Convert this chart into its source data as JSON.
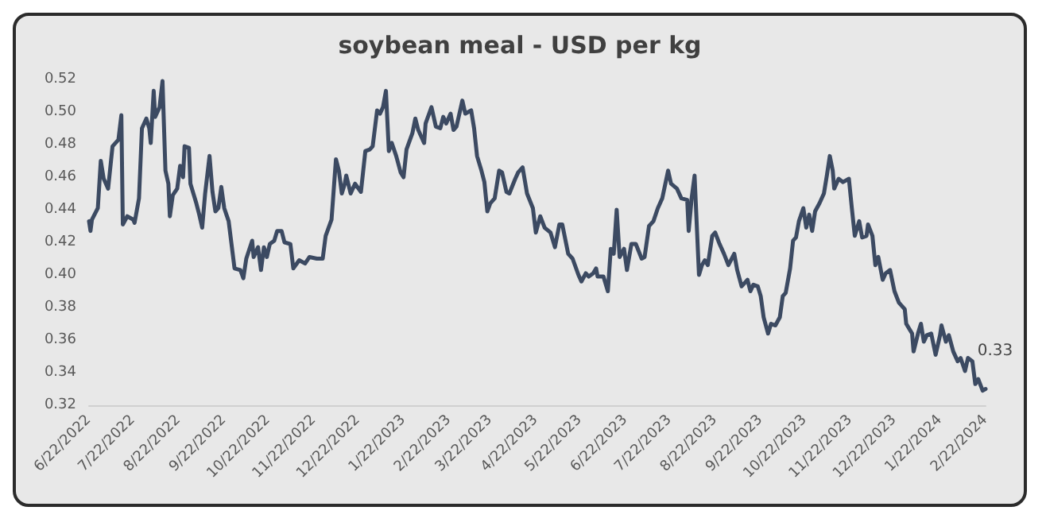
{
  "chart_data": {
    "type": "line",
    "title": "soybean meal - USD per kg",
    "x": [
      "2022-06-22",
      "2022-06-23",
      "2022-06-24",
      "2022-06-28",
      "2022-06-30",
      "2022-07-02",
      "2022-07-05",
      "2022-07-08",
      "2022-07-12",
      "2022-07-14",
      "2022-07-15",
      "2022-07-18",
      "2022-07-22",
      "2022-07-23",
      "2022-07-26",
      "2022-07-28",
      "2022-07-31",
      "2022-08-02",
      "2022-08-03",
      "2022-08-05",
      "2022-08-06",
      "2022-08-09",
      "2022-08-11",
      "2022-08-13",
      "2022-08-15",
      "2022-08-16",
      "2022-08-18",
      "2022-08-21",
      "2022-08-23",
      "2022-08-25",
      "2022-08-26",
      "2022-08-29",
      "2022-08-30",
      "2022-09-03",
      "2022-09-05",
      "2022-09-07",
      "2022-09-09",
      "2022-09-12",
      "2022-09-14",
      "2022-09-16",
      "2022-09-18",
      "2022-09-20",
      "2022-09-22",
      "2022-09-25",
      "2022-09-29",
      "2022-10-03",
      "2022-10-05",
      "2022-10-07",
      "2022-10-11",
      "2022-10-12",
      "2022-10-15",
      "2022-10-17",
      "2022-10-19",
      "2022-10-21",
      "2022-10-23",
      "2022-10-26",
      "2022-10-28",
      "2022-10-31",
      "2022-11-02",
      "2022-11-06",
      "2022-11-08",
      "2022-11-12",
      "2022-11-16",
      "2022-11-19",
      "2022-11-24",
      "2022-11-28",
      "2022-11-30",
      "2022-12-04",
      "2022-12-07",
      "2022-12-09",
      "2022-12-11",
      "2022-12-13",
      "2022-12-14",
      "2022-12-17",
      "2022-12-20",
      "2022-12-24",
      "2022-12-27",
      "2022-12-30",
      "2023-01-01",
      "2023-01-04",
      "2023-01-06",
      "2023-01-08",
      "2023-01-10",
      "2023-01-12",
      "2023-01-14",
      "2023-01-17",
      "2023-01-20",
      "2023-01-22",
      "2023-01-24",
      "2023-01-28",
      "2023-01-30",
      "2023-02-01",
      "2023-02-05",
      "2023-02-06",
      "2023-02-10",
      "2023-02-13",
      "2023-02-16",
      "2023-02-18",
      "2023-02-20",
      "2023-02-23",
      "2023-02-25",
      "2023-02-27",
      "2023-03-03",
      "2023-03-05",
      "2023-03-09",
      "2023-03-11",
      "2023-03-13",
      "2023-03-16",
      "2023-03-18",
      "2023-03-20",
      "2023-03-22",
      "2023-03-25",
      "2023-03-28",
      "2023-03-30",
      "2023-04-02",
      "2023-04-04",
      "2023-04-08",
      "2023-04-10",
      "2023-04-13",
      "2023-04-16",
      "2023-04-20",
      "2023-04-22",
      "2023-04-25",
      "2023-04-28",
      "2023-05-02",
      "2023-05-05",
      "2023-05-08",
      "2023-05-10",
      "2023-05-14",
      "2023-05-17",
      "2023-05-21",
      "2023-05-23",
      "2023-05-26",
      "2023-05-28",
      "2023-05-31",
      "2023-06-02",
      "2023-06-03",
      "2023-06-07",
      "2023-06-10",
      "2023-06-12",
      "2023-06-14",
      "2023-06-16",
      "2023-06-18",
      "2023-06-21",
      "2023-06-23",
      "2023-06-26",
      "2023-06-29",
      "2023-07-03",
      "2023-07-05",
      "2023-07-08",
      "2023-07-11",
      "2023-07-14",
      "2023-07-17",
      "2023-07-21",
      "2023-07-23",
      "2023-07-27",
      "2023-07-30",
      "2023-08-03",
      "2023-08-04",
      "2023-08-06",
      "2023-08-08",
      "2023-08-11",
      "2023-08-13",
      "2023-08-15",
      "2023-08-17",
      "2023-08-20",
      "2023-08-22",
      "2023-08-25",
      "2023-08-28",
      "2023-08-31",
      "2023-09-04",
      "2023-09-06",
      "2023-09-09",
      "2023-09-13",
      "2023-09-15",
      "2023-09-17",
      "2023-09-20",
      "2023-09-22",
      "2023-09-24",
      "2023-09-27",
      "2023-09-29",
      "2023-10-02",
      "2023-10-05",
      "2023-10-07",
      "2023-10-09",
      "2023-10-12",
      "2023-10-14",
      "2023-10-16",
      "2023-10-18",
      "2023-10-21",
      "2023-10-23",
      "2023-10-25",
      "2023-10-27",
      "2023-10-29",
      "2023-11-01",
      "2023-11-04",
      "2023-11-06",
      "2023-11-08",
      "2023-11-10",
      "2023-11-11",
      "2023-11-14",
      "2023-11-17",
      "2023-11-21",
      "2023-11-23",
      "2023-11-25",
      "2023-11-28",
      "2023-11-30",
      "2023-12-03",
      "2023-12-04",
      "2023-12-07",
      "2023-12-09",
      "2023-12-11",
      "2023-12-14",
      "2023-12-16",
      "2023-12-19",
      "2023-12-22",
      "2023-12-25",
      "2023-12-29",
      "2023-12-30",
      "2024-01-03",
      "2024-01-04",
      "2024-01-07",
      "2024-01-09",
      "2024-01-11",
      "2024-01-13",
      "2024-01-16",
      "2024-01-19",
      "2024-01-22",
      "2024-01-23",
      "2024-01-26",
      "2024-01-28",
      "2024-01-31",
      "2024-02-03",
      "2024-02-05",
      "2024-02-08",
      "2024-02-10",
      "2024-02-13",
      "2024-02-15",
      "2024-02-17",
      "2024-02-20",
      "2024-02-22"
    ],
    "series": [
      {
        "color": "#3c4a62",
        "values": [
          0.433,
          0.427,
          0.434,
          0.441,
          0.47,
          0.459,
          0.453,
          0.479,
          0.483,
          0.498,
          0.431,
          0.436,
          0.434,
          0.432,
          0.447,
          0.49,
          0.496,
          0.49,
          0.481,
          0.513,
          0.497,
          0.503,
          0.519,
          0.464,
          0.456,
          0.436,
          0.449,
          0.453,
          0.467,
          0.46,
          0.479,
          0.478,
          0.456,
          0.444,
          0.437,
          0.429,
          0.45,
          0.473,
          0.451,
          0.439,
          0.441,
          0.454,
          0.441,
          0.433,
          0.404,
          0.403,
          0.398,
          0.41,
          0.421,
          0.411,
          0.417,
          0.403,
          0.417,
          0.411,
          0.419,
          0.421,
          0.427,
          0.427,
          0.42,
          0.419,
          0.404,
          0.409,
          0.407,
          0.411,
          0.41,
          0.41,
          0.424,
          0.434,
          0.471,
          0.464,
          0.45,
          0.456,
          0.461,
          0.45,
          0.456,
          0.451,
          0.476,
          0.477,
          0.479,
          0.501,
          0.499,
          0.503,
          0.513,
          0.476,
          0.481,
          0.473,
          0.463,
          0.46,
          0.477,
          0.487,
          0.496,
          0.489,
          0.481,
          0.493,
          0.503,
          0.491,
          0.49,
          0.497,
          0.493,
          0.499,
          0.489,
          0.491,
          0.507,
          0.499,
          0.501,
          0.49,
          0.473,
          0.464,
          0.457,
          0.439,
          0.444,
          0.447,
          0.464,
          0.463,
          0.451,
          0.45,
          0.459,
          0.463,
          0.466,
          0.45,
          0.441,
          0.426,
          0.436,
          0.429,
          0.426,
          0.417,
          0.431,
          0.431,
          0.413,
          0.41,
          0.4,
          0.396,
          0.401,
          0.399,
          0.401,
          0.404,
          0.399,
          0.399,
          0.39,
          0.416,
          0.413,
          0.44,
          0.411,
          0.416,
          0.403,
          0.419,
          0.419,
          0.41,
          0.411,
          0.43,
          0.433,
          0.441,
          0.447,
          0.464,
          0.456,
          0.453,
          0.447,
          0.446,
          0.427,
          0.447,
          0.461,
          0.4,
          0.406,
          0.409,
          0.406,
          0.424,
          0.426,
          0.419,
          0.413,
          0.406,
          0.413,
          0.403,
          0.393,
          0.397,
          0.39,
          0.394,
          0.393,
          0.387,
          0.374,
          0.364,
          0.37,
          0.369,
          0.374,
          0.387,
          0.389,
          0.404,
          0.421,
          0.423,
          0.433,
          0.441,
          0.429,
          0.437,
          0.427,
          0.439,
          0.444,
          0.45,
          0.461,
          0.473,
          0.464,
          0.453,
          0.459,
          0.457,
          0.459,
          0.441,
          0.424,
          0.433,
          0.423,
          0.424,
          0.431,
          0.424,
          0.406,
          0.411,
          0.397,
          0.401,
          0.403,
          0.39,
          0.383,
          0.379,
          0.37,
          0.364,
          0.353,
          0.364,
          0.37,
          0.359,
          0.363,
          0.364,
          0.351,
          0.363,
          0.369,
          0.359,
          0.363,
          0.353,
          0.347,
          0.349,
          0.341,
          0.349,
          0.347,
          0.333,
          0.336,
          0.329,
          0.33
        ]
      }
    ],
    "annotations": [
      {
        "text": "0.33",
        "x": "2024-02-22",
        "y": 0.33
      }
    ],
    "xlim": [
      "2022-06-22",
      "2024-02-22"
    ],
    "xticks": [
      {
        "value": "2022-06-22",
        "label": "6/22/2022"
      },
      {
        "value": "2022-07-22",
        "label": "7/22/2022"
      },
      {
        "value": "2022-08-22",
        "label": "8/22/2022"
      },
      {
        "value": "2022-09-22",
        "label": "9/22/2022"
      },
      {
        "value": "2022-10-22",
        "label": "10/22/2022"
      },
      {
        "value": "2022-11-22",
        "label": "11/22/2022"
      },
      {
        "value": "2022-12-22",
        "label": "12/22/2022"
      },
      {
        "value": "2023-01-22",
        "label": "1/22/2023"
      },
      {
        "value": "2023-02-22",
        "label": "2/22/2023"
      },
      {
        "value": "2023-03-22",
        "label": "3/22/2023"
      },
      {
        "value": "2023-04-22",
        "label": "4/22/2023"
      },
      {
        "value": "2023-05-22",
        "label": "5/22/2023"
      },
      {
        "value": "2023-06-22",
        "label": "6/22/2023"
      },
      {
        "value": "2023-07-22",
        "label": "7/22/2023"
      },
      {
        "value": "2023-08-22",
        "label": "8/22/2023"
      },
      {
        "value": "2023-09-22",
        "label": "9/22/2023"
      },
      {
        "value": "2023-10-22",
        "label": "10/22/2023"
      },
      {
        "value": "2023-11-22",
        "label": "11/22/2023"
      },
      {
        "value": "2023-12-22",
        "label": "12/22/2023"
      },
      {
        "value": "2024-01-22",
        "label": "1/22/2024"
      },
      {
        "value": "2024-02-22",
        "label": "2/22/2024"
      }
    ],
    "ylim": [
      0.32,
      0.52
    ],
    "yticks": [
      0.32,
      0.34,
      0.36,
      0.38,
      {
        "value": 0.4,
        "label": "0.40"
      },
      0.42,
      0.44,
      0.46,
      0.48,
      {
        "value": 0.5,
        "label": "0.50"
      },
      0.52
    ],
    "grid": false,
    "marker": "none",
    "line_style": "solid"
  }
}
